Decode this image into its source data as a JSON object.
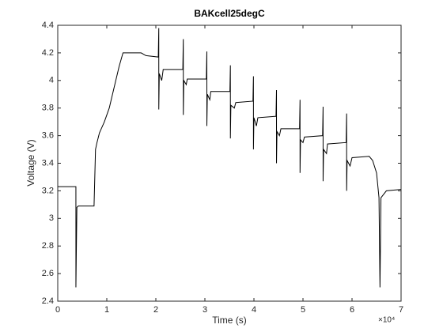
{
  "chart_data": {
    "type": "line",
    "title": "BAKcell25degC",
    "x_label": "Time (s)",
    "y_label": "Voltage (V)",
    "x_multiplier": "×10⁴",
    "xlim": [
      0,
      7
    ],
    "xticks": [
      0,
      1,
      2,
      3,
      4,
      5,
      6,
      7
    ],
    "ylim": [
      2.4,
      4.4
    ],
    "yticks": [
      2.4,
      2.6,
      2.8,
      3,
      3.2,
      3.4,
      3.6,
      3.8,
      4,
      4.2,
      4.4
    ],
    "color": "#000000",
    "grid": false,
    "x": [
      0,
      0.37,
      0.37,
      0.39,
      0.42,
      0.74,
      0.77,
      0.8,
      0.85,
      0.95,
      1.05,
      1.15,
      1.25,
      1.33,
      1.7,
      1.8,
      2.05,
      2.06,
      2.06,
      2.07,
      2.12,
      2.15,
      2.55,
      2.56,
      2.56,
      2.57,
      2.62,
      2.64,
      3.03,
      3.04,
      3.04,
      3.05,
      3.1,
      3.12,
      3.51,
      3.52,
      3.52,
      3.53,
      3.6,
      3.63,
      3.98,
      3.99,
      3.99,
      4.0,
      4.05,
      4.08,
      4.45,
      4.46,
      4.46,
      4.47,
      4.52,
      4.55,
      4.93,
      4.94,
      4.94,
      4.95,
      5.0,
      5.03,
      5.4,
      5.41,
      5.41,
      5.42,
      5.48,
      5.5,
      5.88,
      5.89,
      5.89,
      5.9,
      5.96,
      6.0,
      6.35,
      6.42,
      6.5,
      6.55,
      6.57,
      6.59,
      6.7,
      7.0
    ],
    "values": [
      3.23,
      3.23,
      2.5,
      3.08,
      3.09,
      3.09,
      3.5,
      3.55,
      3.62,
      3.7,
      3.8,
      3.95,
      4.1,
      4.2,
      4.2,
      4.18,
      4.17,
      4.38,
      3.79,
      4.05,
      4.0,
      4.08,
      4.08,
      4.3,
      3.75,
      4.0,
      3.97,
      4.01,
      4.01,
      4.21,
      3.67,
      3.9,
      3.86,
      3.92,
      3.92,
      4.11,
      3.58,
      3.82,
      3.8,
      3.84,
      3.85,
      4.03,
      3.5,
      3.73,
      3.67,
      3.73,
      3.74,
      3.93,
      3.4,
      3.63,
      3.6,
      3.65,
      3.65,
      3.86,
      3.33,
      3.57,
      3.55,
      3.59,
      3.6,
      3.81,
      3.27,
      3.5,
      3.47,
      3.54,
      3.55,
      3.76,
      3.2,
      3.42,
      3.38,
      3.44,
      3.45,
      3.42,
      3.33,
      3.15,
      2.5,
      3.15,
      3.2,
      3.21
    ]
  }
}
